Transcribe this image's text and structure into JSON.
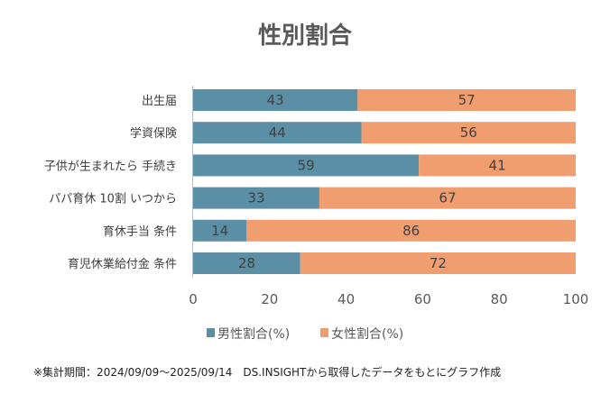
{
  "chart_data": {
    "type": "bar",
    "orientation": "horizontal",
    "stacked": true,
    "title": "性別割合",
    "categories": [
      "出生届",
      "学資保険",
      "子供が生まれたら 手続き",
      "パパ育休 10割 いつから",
      "育休手当 条件",
      "育児休業給付金 条件"
    ],
    "series": [
      {
        "name": "男性割合(%)",
        "color": "#5b8fa5",
        "values": [
          43,
          44,
          59,
          33,
          14,
          28
        ]
      },
      {
        "name": "女性割合(%)",
        "color": "#f09e70",
        "values": [
          57,
          56,
          41,
          67,
          86,
          72
        ]
      }
    ],
    "xlim": [
      0,
      100
    ],
    "xticks": [
      "0",
      "20",
      "40",
      "60",
      "80",
      "100"
    ],
    "grid": false,
    "data_labels": true,
    "legend": "bottom",
    "footnote": "※集計期間：2024/09/09～2025/09/14　DS.INSIGHTから取得したデータをもとにグラフ作成"
  }
}
